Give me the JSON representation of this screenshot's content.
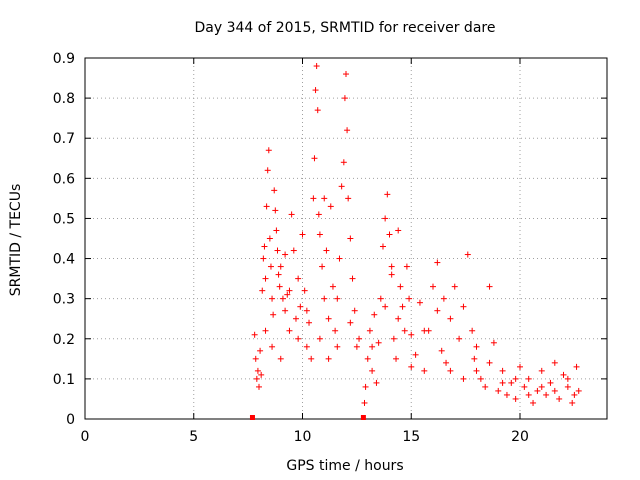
{
  "chart_data": {
    "type": "scatter",
    "title": "Day 344 of 2015, SRMTID for receiver dare",
    "xlabel": "GPS time / hours",
    "ylabel": "SRMTID / TECUs",
    "xlim": [
      0,
      24
    ],
    "ylim": [
      0,
      0.9
    ],
    "x_ticks": [
      "0",
      "5",
      "10",
      "15",
      "20"
    ],
    "y_ticks": [
      "0",
      "0.1",
      "0.2",
      "0.3",
      "0.4",
      "0.5",
      "0.6",
      "0.7",
      "0.8",
      "0.9"
    ],
    "grid": true,
    "marker": "plus",
    "point_color": "#ff0000",
    "series": [
      {
        "name": "SRMTID",
        "segment_markers": [
          7.7,
          12.8
        ],
        "points": [
          [
            7.8,
            0.21
          ],
          [
            7.85,
            0.15
          ],
          [
            7.9,
            0.1
          ],
          [
            7.95,
            0.12
          ],
          [
            8.0,
            0.08
          ],
          [
            8.05,
            0.17
          ],
          [
            8.1,
            0.11
          ],
          [
            8.15,
            0.32
          ],
          [
            8.2,
            0.4
          ],
          [
            8.25,
            0.43
          ],
          [
            8.3,
            0.35
          ],
          [
            8.35,
            0.53
          ],
          [
            8.4,
            0.62
          ],
          [
            8.45,
            0.67
          ],
          [
            8.5,
            0.45
          ],
          [
            8.55,
            0.38
          ],
          [
            8.6,
            0.3
          ],
          [
            8.65,
            0.26
          ],
          [
            8.7,
            0.57
          ],
          [
            8.75,
            0.52
          ],
          [
            8.8,
            0.47
          ],
          [
            8.85,
            0.42
          ],
          [
            8.9,
            0.36
          ],
          [
            8.95,
            0.33
          ],
          [
            9.0,
            0.38
          ],
          [
            9.1,
            0.3
          ],
          [
            9.2,
            0.27
          ],
          [
            9.3,
            0.31
          ],
          [
            9.4,
            0.22
          ],
          [
            9.5,
            0.51
          ],
          [
            9.6,
            0.42
          ],
          [
            9.7,
            0.25
          ],
          [
            9.8,
            0.2
          ],
          [
            9.9,
            0.28
          ],
          [
            10.0,
            0.46
          ],
          [
            10.1,
            0.32
          ],
          [
            10.2,
            0.18
          ],
          [
            10.3,
            0.24
          ],
          [
            10.4,
            0.15
          ],
          [
            10.5,
            0.55
          ],
          [
            10.55,
            0.65
          ],
          [
            10.6,
            0.82
          ],
          [
            10.65,
            0.88
          ],
          [
            10.7,
            0.77
          ],
          [
            10.75,
            0.51
          ],
          [
            10.8,
            0.46
          ],
          [
            10.9,
            0.38
          ],
          [
            11.0,
            0.3
          ],
          [
            11.1,
            0.42
          ],
          [
            11.2,
            0.25
          ],
          [
            11.3,
            0.53
          ],
          [
            11.4,
            0.33
          ],
          [
            11.5,
            0.22
          ],
          [
            11.6,
            0.18
          ],
          [
            11.7,
            0.4
          ],
          [
            11.8,
            0.58
          ],
          [
            11.9,
            0.64
          ],
          [
            11.95,
            0.8
          ],
          [
            12.0,
            0.86
          ],
          [
            12.05,
            0.72
          ],
          [
            12.1,
            0.55
          ],
          [
            12.2,
            0.45
          ],
          [
            12.3,
            0.35
          ],
          [
            12.4,
            0.27
          ],
          [
            12.5,
            0.18
          ],
          [
            12.6,
            0.2
          ],
          [
            12.85,
            0.04
          ],
          [
            12.9,
            0.08
          ],
          [
            13.0,
            0.15
          ],
          [
            13.1,
            0.22
          ],
          [
            13.2,
            0.12
          ],
          [
            13.3,
            0.26
          ],
          [
            13.4,
            0.09
          ],
          [
            13.5,
            0.19
          ],
          [
            13.6,
            0.3
          ],
          [
            13.7,
            0.43
          ],
          [
            13.8,
            0.5
          ],
          [
            13.9,
            0.56
          ],
          [
            14.0,
            0.46
          ],
          [
            14.1,
            0.36
          ],
          [
            14.2,
            0.2
          ],
          [
            14.3,
            0.15
          ],
          [
            14.4,
            0.47
          ],
          [
            14.5,
            0.33
          ],
          [
            14.6,
            0.28
          ],
          [
            14.7,
            0.22
          ],
          [
            14.8,
            0.38
          ],
          [
            14.9,
            0.3
          ],
          [
            15.0,
            0.21
          ],
          [
            15.2,
            0.16
          ],
          [
            15.4,
            0.29
          ],
          [
            15.6,
            0.12
          ],
          [
            15.8,
            0.22
          ],
          [
            16.0,
            0.33
          ],
          [
            16.2,
            0.39
          ],
          [
            16.4,
            0.17
          ],
          [
            16.6,
            0.14
          ],
          [
            16.8,
            0.25
          ],
          [
            17.0,
            0.33
          ],
          [
            17.2,
            0.2
          ],
          [
            17.4,
            0.1
          ],
          [
            17.6,
            0.41
          ],
          [
            17.8,
            0.22
          ],
          [
            18.0,
            0.18
          ],
          [
            18.2,
            0.1
          ],
          [
            18.4,
            0.08
          ],
          [
            18.6,
            0.33
          ],
          [
            18.8,
            0.19
          ],
          [
            19.0,
            0.07
          ],
          [
            19.2,
            0.12
          ],
          [
            19.4,
            0.06
          ],
          [
            19.6,
            0.09
          ],
          [
            19.8,
            0.05
          ],
          [
            20.0,
            0.13
          ],
          [
            20.2,
            0.08
          ],
          [
            20.4,
            0.1
          ],
          [
            20.6,
            0.04
          ],
          [
            20.8,
            0.07
          ],
          [
            21.0,
            0.12
          ],
          [
            21.2,
            0.06
          ],
          [
            21.4,
            0.09
          ],
          [
            21.6,
            0.14
          ],
          [
            21.8,
            0.05
          ],
          [
            22.0,
            0.11
          ],
          [
            22.2,
            0.08
          ],
          [
            22.4,
            0.04
          ],
          [
            22.6,
            0.13
          ],
          [
            22.7,
            0.07
          ],
          [
            8.3,
            0.22
          ],
          [
            8.6,
            0.18
          ],
          [
            9.0,
            0.15
          ],
          [
            9.4,
            0.32
          ],
          [
            9.8,
            0.35
          ],
          [
            10.2,
            0.27
          ],
          [
            10.8,
            0.2
          ],
          [
            11.2,
            0.15
          ],
          [
            11.6,
            0.3
          ],
          [
            12.2,
            0.24
          ],
          [
            13.2,
            0.18
          ],
          [
            13.8,
            0.28
          ],
          [
            14.4,
            0.25
          ],
          [
            15.0,
            0.13
          ],
          [
            15.6,
            0.22
          ],
          [
            16.2,
            0.27
          ],
          [
            16.8,
            0.12
          ],
          [
            17.4,
            0.28
          ],
          [
            18.0,
            0.12
          ],
          [
            18.6,
            0.14
          ],
          [
            19.2,
            0.09
          ],
          [
            19.8,
            0.1
          ],
          [
            20.4,
            0.06
          ],
          [
            21.0,
            0.08
          ],
          [
            21.6,
            0.07
          ],
          [
            22.2,
            0.1
          ],
          [
            22.5,
            0.06
          ],
          [
            17.9,
            0.15
          ],
          [
            16.5,
            0.3
          ],
          [
            14.1,
            0.38
          ],
          [
            11.0,
            0.55
          ],
          [
            9.2,
            0.41
          ]
        ]
      }
    ]
  }
}
